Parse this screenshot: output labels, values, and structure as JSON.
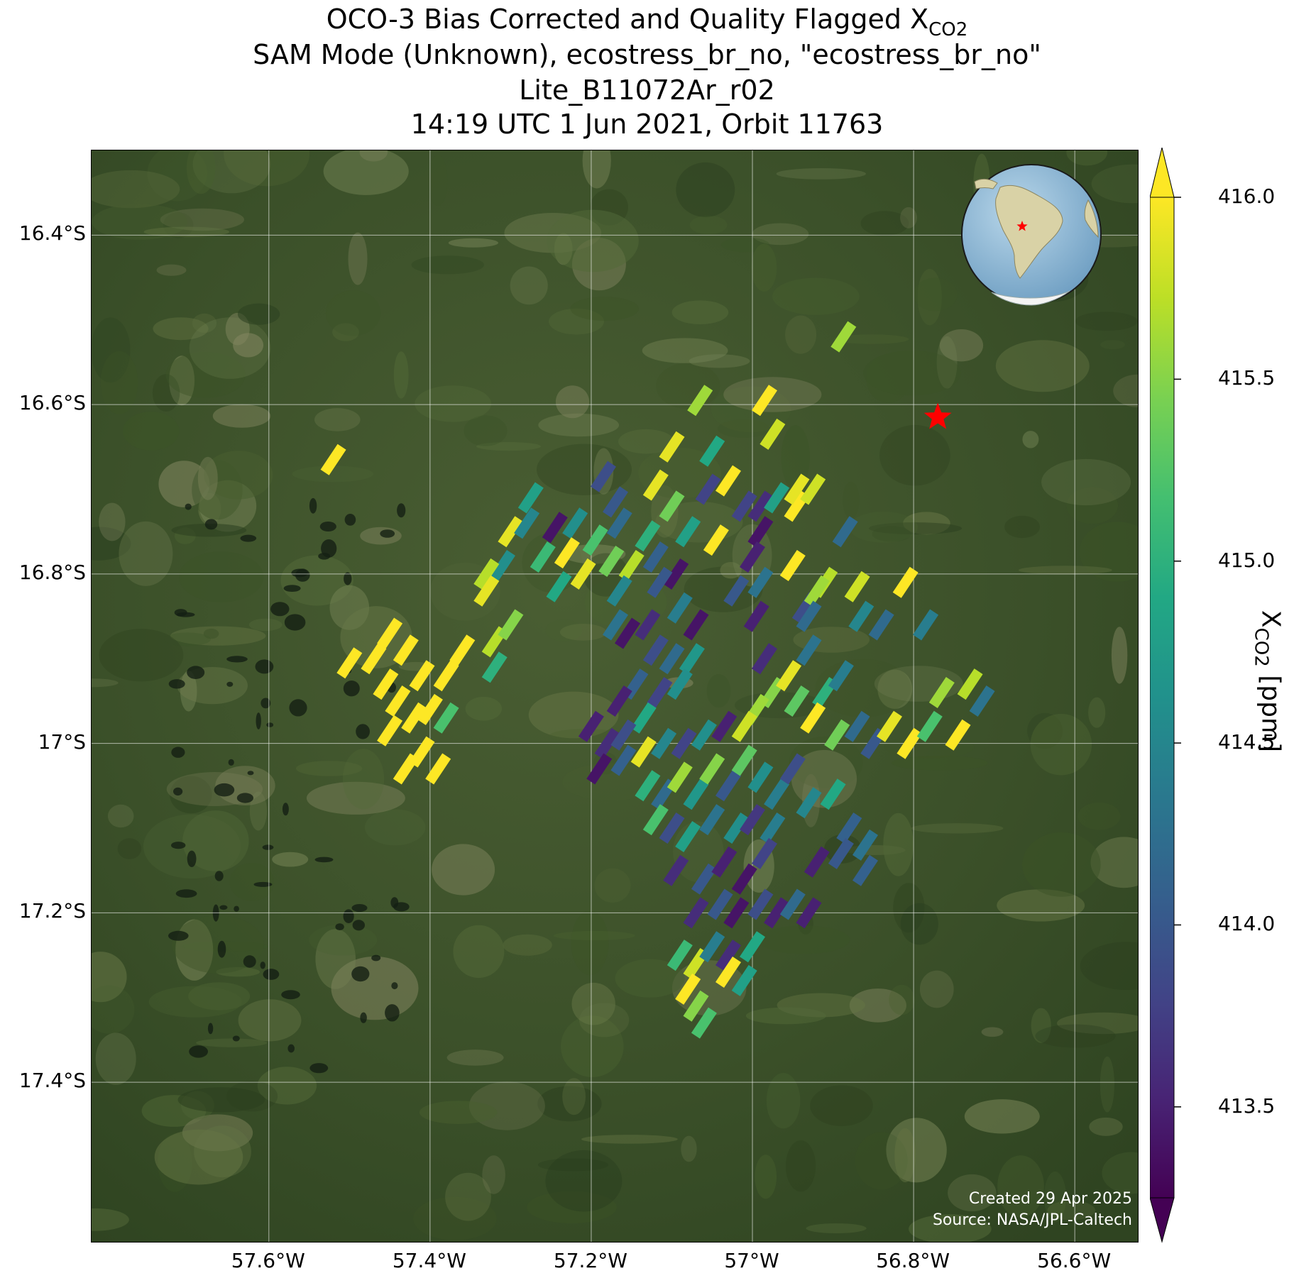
{
  "title": {
    "line1_prefix": "OCO-3 Bias Corrected and Quality Flagged X",
    "line1_sub": "CO2",
    "line2": "SAM Mode (Unknown), ecostress_br_no, \"ecostress_br_no\"",
    "line3": "Lite_B11072Ar_r02",
    "line4": "14:19 UTC 1 Jun 2021, Orbit 11763"
  },
  "axes": {
    "lon_ticks": [
      "57.6°W",
      "57.4°W",
      "57.2°W",
      "57°W",
      "56.8°W",
      "56.6°W"
    ],
    "lat_ticks": [
      "16.4°S",
      "16.6°S",
      "16.8°S",
      "17°S",
      "17.2°S",
      "17.4°S"
    ],
    "lon_range": [
      -57.82,
      -56.52
    ],
    "lat_range": [
      -17.59,
      -16.3
    ]
  },
  "colorbar": {
    "title_prefix": "X",
    "title_sub": "CO2",
    "title_suffix": " [ppm]",
    "ticks": [
      "416.0",
      "415.5",
      "415.0",
      "414.5",
      "414.0",
      "413.5"
    ],
    "range": [
      413.25,
      416.0
    ],
    "colormap": "viridis",
    "extend": "both"
  },
  "target": {
    "marker": "star",
    "color": "#ff0000",
    "lon": -56.77,
    "lat": -16.615
  },
  "inset_globe": {
    "marker": "star",
    "color": "#ff0000",
    "region": "South America"
  },
  "credits": {
    "created": "Created 29 Apr 2025",
    "source": "Source: NASA/JPL-Caltech"
  },
  "chart_data": {
    "type": "scatter",
    "marker": "footprint-parallelogram",
    "xlabel": "",
    "ylabel": "",
    "xlim": [
      -57.82,
      -56.52
    ],
    "ylim": [
      -17.59,
      -16.3
    ],
    "soundings": [
      {
        "lon": -57.52,
        "lat": -16.665,
        "v": 416.0
      },
      {
        "lon": -56.887,
        "lat": -16.52,
        "v": 415.6
      },
      {
        "lon": -57.065,
        "lat": -16.595,
        "v": 415.6
      },
      {
        "lon": -56.985,
        "lat": -16.595,
        "v": 416.0
      },
      {
        "lon": -56.975,
        "lat": -16.635,
        "v": 415.8
      },
      {
        "lon": -57.1,
        "lat": -16.65,
        "v": 415.9
      },
      {
        "lon": -57.05,
        "lat": -16.655,
        "v": 414.9
      },
      {
        "lon": -57.12,
        "lat": -16.695,
        "v": 415.9
      },
      {
        "lon": -57.17,
        "lat": -16.715,
        "v": 414.0
      },
      {
        "lon": -57.185,
        "lat": -16.685,
        "v": 413.9
      },
      {
        "lon": -57.1,
        "lat": -16.72,
        "v": 415.4
      },
      {
        "lon": -57.055,
        "lat": -16.7,
        "v": 413.8
      },
      {
        "lon": -57.03,
        "lat": -16.69,
        "v": 416.0
      },
      {
        "lon": -57.275,
        "lat": -16.71,
        "v": 414.8
      },
      {
        "lon": -57.245,
        "lat": -16.745,
        "v": 413.4
      },
      {
        "lon": -57.3,
        "lat": -16.75,
        "v": 415.9
      },
      {
        "lon": -57.28,
        "lat": -16.74,
        "v": 414.5
      },
      {
        "lon": -57.22,
        "lat": -16.74,
        "v": 414.6
      },
      {
        "lon": -57.195,
        "lat": -16.76,
        "v": 415.2
      },
      {
        "lon": -57.165,
        "lat": -16.74,
        "v": 414.2
      },
      {
        "lon": -57.13,
        "lat": -16.755,
        "v": 415.0
      },
      {
        "lon": -57.08,
        "lat": -16.75,
        "v": 414.8
      },
      {
        "lon": -57.23,
        "lat": -16.775,
        "v": 416.0
      },
      {
        "lon": -57.21,
        "lat": -16.8,
        "v": 415.9
      },
      {
        "lon": -57.26,
        "lat": -16.78,
        "v": 415.1
      },
      {
        "lon": -57.31,
        "lat": -16.79,
        "v": 414.6
      },
      {
        "lon": -57.175,
        "lat": -16.785,
        "v": 415.4
      },
      {
        "lon": -57.15,
        "lat": -16.79,
        "v": 415.7
      },
      {
        "lon": -57.12,
        "lat": -16.78,
        "v": 414.1
      },
      {
        "lon": -57.095,
        "lat": -16.8,
        "v": 413.4
      },
      {
        "lon": -57.115,
        "lat": -16.81,
        "v": 414.0
      },
      {
        "lon": -57.045,
        "lat": -16.76,
        "v": 416.0
      },
      {
        "lon": -57.33,
        "lat": -16.8,
        "v": 415.7
      },
      {
        "lon": -57.33,
        "lat": -16.82,
        "v": 415.9
      },
      {
        "lon": -57.24,
        "lat": -16.815,
        "v": 414.9
      },
      {
        "lon": -57.01,
        "lat": -16.72,
        "v": 413.8
      },
      {
        "lon": -56.99,
        "lat": -16.72,
        "v": 413.6
      },
      {
        "lon": -56.99,
        "lat": -16.75,
        "v": 413.4
      },
      {
        "lon": -56.97,
        "lat": -16.71,
        "v": 414.8
      },
      {
        "lon": -56.945,
        "lat": -16.72,
        "v": 416.0
      },
      {
        "lon": -56.925,
        "lat": -16.7,
        "v": 415.8
      },
      {
        "lon": -56.945,
        "lat": -16.7,
        "v": 415.9
      },
      {
        "lon": -56.885,
        "lat": -16.75,
        "v": 414.2
      },
      {
        "lon": -56.95,
        "lat": -16.79,
        "v": 416.0
      },
      {
        "lon": -57.0,
        "lat": -16.78,
        "v": 413.5
      },
      {
        "lon": -56.99,
        "lat": -16.81,
        "v": 414.3
      },
      {
        "lon": -56.995,
        "lat": -16.85,
        "v": 413.5
      },
      {
        "lon": -57.02,
        "lat": -16.82,
        "v": 414.0
      },
      {
        "lon": -56.91,
        "lat": -16.81,
        "v": 415.7
      },
      {
        "lon": -56.935,
        "lat": -16.84,
        "v": 413.9
      },
      {
        "lon": -56.92,
        "lat": -16.82,
        "v": 415.6
      },
      {
        "lon": -56.93,
        "lat": -16.85,
        "v": 414.2
      },
      {
        "lon": -56.87,
        "lat": -16.815,
        "v": 415.8
      },
      {
        "lon": -56.865,
        "lat": -16.85,
        "v": 414.5
      },
      {
        "lon": -56.81,
        "lat": -16.81,
        "v": 416.0
      },
      {
        "lon": -56.785,
        "lat": -16.86,
        "v": 414.4
      },
      {
        "lon": -57.165,
        "lat": -16.82,
        "v": 414.5
      },
      {
        "lon": -57.17,
        "lat": -16.86,
        "v": 414.3
      },
      {
        "lon": -57.155,
        "lat": -16.87,
        "v": 413.4
      },
      {
        "lon": -57.13,
        "lat": -16.86,
        "v": 413.6
      },
      {
        "lon": -57.09,
        "lat": -16.84,
        "v": 414.4
      },
      {
        "lon": -57.07,
        "lat": -16.86,
        "v": 413.4
      },
      {
        "lon": -57.12,
        "lat": -16.89,
        "v": 413.9
      },
      {
        "lon": -57.1,
        "lat": -16.9,
        "v": 414.2
      },
      {
        "lon": -57.075,
        "lat": -16.9,
        "v": 414.7
      },
      {
        "lon": -57.145,
        "lat": -16.93,
        "v": 414.1
      },
      {
        "lon": -57.115,
        "lat": -16.94,
        "v": 413.8
      },
      {
        "lon": -57.09,
        "lat": -16.93,
        "v": 414.6
      },
      {
        "lon": -57.165,
        "lat": -16.95,
        "v": 413.5
      },
      {
        "lon": -57.135,
        "lat": -16.97,
        "v": 414.9
      },
      {
        "lon": -57.2,
        "lat": -16.98,
        "v": 413.5
      },
      {
        "lon": -57.18,
        "lat": -17.0,
        "v": 413.6
      },
      {
        "lon": -57.16,
        "lat": -16.99,
        "v": 413.9
      },
      {
        "lon": -57.19,
        "lat": -17.03,
        "v": 413.4
      },
      {
        "lon": -57.16,
        "lat": -17.02,
        "v": 414.1
      },
      {
        "lon": -57.135,
        "lat": -17.01,
        "v": 415.9
      },
      {
        "lon": -57.11,
        "lat": -17.0,
        "v": 414.5
      },
      {
        "lon": -57.085,
        "lat": -17.0,
        "v": 413.8
      },
      {
        "lon": -57.06,
        "lat": -16.99,
        "v": 414.6
      },
      {
        "lon": -57.035,
        "lat": -16.98,
        "v": 413.5
      },
      {
        "lon": -56.985,
        "lat": -16.9,
        "v": 413.6
      },
      {
        "lon": -56.975,
        "lat": -16.94,
        "v": 415.5
      },
      {
        "lon": -56.955,
        "lat": -16.92,
        "v": 415.9
      },
      {
        "lon": -56.945,
        "lat": -16.95,
        "v": 415.3
      },
      {
        "lon": -56.93,
        "lat": -16.89,
        "v": 414.3
      },
      {
        "lon": -56.91,
        "lat": -16.94,
        "v": 415.0
      },
      {
        "lon": -56.89,
        "lat": -16.92,
        "v": 414.4
      },
      {
        "lon": -56.925,
        "lat": -16.97,
        "v": 416.0
      },
      {
        "lon": -56.995,
        "lat": -16.96,
        "v": 415.6
      },
      {
        "lon": -57.01,
        "lat": -16.98,
        "v": 415.8
      },
      {
        "lon": -56.87,
        "lat": -16.98,
        "v": 414.2
      },
      {
        "lon": -56.85,
        "lat": -17.0,
        "v": 414.0
      },
      {
        "lon": -56.83,
        "lat": -16.98,
        "v": 415.9
      },
      {
        "lon": -56.805,
        "lat": -17.0,
        "v": 416.0
      },
      {
        "lon": -56.78,
        "lat": -16.98,
        "v": 415.2
      },
      {
        "lon": -56.765,
        "lat": -16.94,
        "v": 415.6
      },
      {
        "lon": -56.745,
        "lat": -16.99,
        "v": 416.0
      },
      {
        "lon": -56.73,
        "lat": -16.93,
        "v": 415.7
      },
      {
        "lon": -56.715,
        "lat": -16.95,
        "v": 414.3
      },
      {
        "lon": -56.895,
        "lat": -16.99,
        "v": 415.4
      },
      {
        "lon": -57.13,
        "lat": -17.05,
        "v": 415.0
      },
      {
        "lon": -57.11,
        "lat": -17.06,
        "v": 414.2
      },
      {
        "lon": -57.09,
        "lat": -17.04,
        "v": 415.6
      },
      {
        "lon": -57.07,
        "lat": -17.06,
        "v": 414.7
      },
      {
        "lon": -57.05,
        "lat": -17.03,
        "v": 415.5
      },
      {
        "lon": -57.03,
        "lat": -17.05,
        "v": 414.0
      },
      {
        "lon": -57.01,
        "lat": -17.02,
        "v": 415.3
      },
      {
        "lon": -56.99,
        "lat": -17.04,
        "v": 414.6
      },
      {
        "lon": -56.97,
        "lat": -17.06,
        "v": 414.4
      },
      {
        "lon": -56.95,
        "lat": -17.03,
        "v": 413.9
      },
      {
        "lon": -56.93,
        "lat": -17.07,
        "v": 414.5
      },
      {
        "lon": -56.9,
        "lat": -17.06,
        "v": 414.9
      },
      {
        "lon": -57.12,
        "lat": -17.09,
        "v": 415.2
      },
      {
        "lon": -57.1,
        "lat": -17.1,
        "v": 413.9
      },
      {
        "lon": -57.08,
        "lat": -17.11,
        "v": 414.8
      },
      {
        "lon": -57.05,
        "lat": -17.09,
        "v": 414.3
      },
      {
        "lon": -57.02,
        "lat": -17.1,
        "v": 414.6
      },
      {
        "lon": -57.0,
        "lat": -17.09,
        "v": 413.7
      },
      {
        "lon": -56.975,
        "lat": -17.1,
        "v": 414.4
      },
      {
        "lon": -56.88,
        "lat": -17.1,
        "v": 414.1
      },
      {
        "lon": -56.86,
        "lat": -17.12,
        "v": 414.3
      },
      {
        "lon": -57.095,
        "lat": -17.15,
        "v": 413.6
      },
      {
        "lon": -57.06,
        "lat": -17.16,
        "v": 414.0
      },
      {
        "lon": -57.035,
        "lat": -17.14,
        "v": 413.5
      },
      {
        "lon": -57.01,
        "lat": -17.16,
        "v": 413.4
      },
      {
        "lon": -56.985,
        "lat": -17.13,
        "v": 413.8
      },
      {
        "lon": -56.92,
        "lat": -17.14,
        "v": 413.5
      },
      {
        "lon": -56.89,
        "lat": -17.13,
        "v": 414.0
      },
      {
        "lon": -56.86,
        "lat": -17.15,
        "v": 414.1
      },
      {
        "lon": -57.07,
        "lat": -17.2,
        "v": 413.6
      },
      {
        "lon": -57.04,
        "lat": -17.19,
        "v": 414.0
      },
      {
        "lon": -57.02,
        "lat": -17.2,
        "v": 413.4
      },
      {
        "lon": -56.99,
        "lat": -17.19,
        "v": 413.9
      },
      {
        "lon": -56.97,
        "lat": -17.2,
        "v": 413.5
      },
      {
        "lon": -56.95,
        "lat": -17.19,
        "v": 414.2
      },
      {
        "lon": -56.93,
        "lat": -17.2,
        "v": 413.5
      },
      {
        "lon": -57.09,
        "lat": -17.25,
        "v": 415.1
      },
      {
        "lon": -57.07,
        "lat": -17.26,
        "v": 415.8
      },
      {
        "lon": -57.05,
        "lat": -17.24,
        "v": 414.4
      },
      {
        "lon": -57.03,
        "lat": -17.25,
        "v": 413.6
      },
      {
        "lon": -57.0,
        "lat": -17.24,
        "v": 414.9
      },
      {
        "lon": -57.03,
        "lat": -17.27,
        "v": 416.0
      },
      {
        "lon": -57.01,
        "lat": -17.28,
        "v": 414.8
      },
      {
        "lon": -57.08,
        "lat": -17.29,
        "v": 416.0
      },
      {
        "lon": -57.07,
        "lat": -17.31,
        "v": 415.5
      },
      {
        "lon": -57.06,
        "lat": -17.33,
        "v": 415.2
      },
      {
        "lon": -57.45,
        "lat": -16.87,
        "v": 416.0
      },
      {
        "lon": -57.47,
        "lat": -16.9,
        "v": 416.0
      },
      {
        "lon": -57.43,
        "lat": -16.89,
        "v": 416.0
      },
      {
        "lon": -57.41,
        "lat": -16.92,
        "v": 416.0
      },
      {
        "lon": -57.455,
        "lat": -16.93,
        "v": 416.0
      },
      {
        "lon": -57.44,
        "lat": -16.95,
        "v": 416.0
      },
      {
        "lon": -57.42,
        "lat": -16.97,
        "v": 416.0
      },
      {
        "lon": -57.45,
        "lat": -16.985,
        "v": 416.0
      },
      {
        "lon": -57.4,
        "lat": -16.96,
        "v": 416.0
      },
      {
        "lon": -57.5,
        "lat": -16.905,
        "v": 416.0
      },
      {
        "lon": -57.38,
        "lat": -16.97,
        "v": 415.2
      },
      {
        "lon": -57.38,
        "lat": -16.92,
        "v": 416.0
      },
      {
        "lon": -57.36,
        "lat": -16.89,
        "v": 416.0
      },
      {
        "lon": -57.41,
        "lat": -17.01,
        "v": 416.0
      },
      {
        "lon": -57.39,
        "lat": -17.03,
        "v": 416.0
      },
      {
        "lon": -57.43,
        "lat": -17.03,
        "v": 416.0
      },
      {
        "lon": -57.32,
        "lat": -16.88,
        "v": 415.7
      },
      {
        "lon": -57.32,
        "lat": -16.91,
        "v": 415.0
      },
      {
        "lon": -57.3,
        "lat": -16.86,
        "v": 415.5
      },
      {
        "lon": -56.84,
        "lat": -16.86,
        "v": 414.2
      }
    ]
  }
}
